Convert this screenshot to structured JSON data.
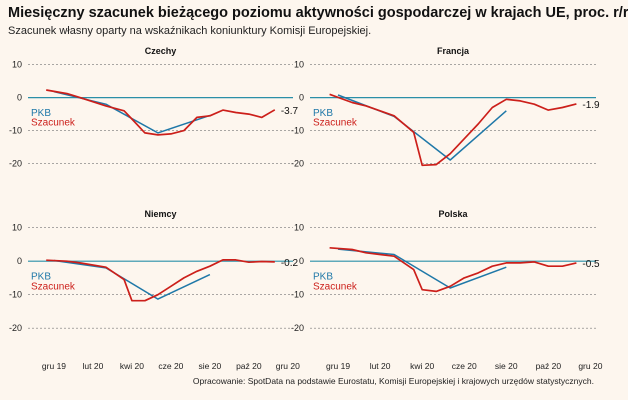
{
  "title": "Miesięczny szacunek bieżącego poziomu aktywności gospodarczej w krajach UE, proc. r/r",
  "subtitle": "Szacunek własny oparty na wskaźnikach koniunktury Komisji Europejskiej.",
  "source": "Opracowanie: SpotData na podstawie Eurostatu, Komisji Europejskiej i krajowych urzędów statystycznych.",
  "colors": {
    "pkb": "#1f78a8",
    "szacunek": "#cc1f1a",
    "zero_line": "#2a8fa8",
    "grid": "#777777",
    "background": "#fdf6ee"
  },
  "chart_data": [
    {
      "type": "line",
      "title": "Czechy",
      "x_tick_labels": [],
      "ylim": [
        -28,
        12
      ],
      "yticks": [
        10,
        0,
        -10,
        -20
      ],
      "series": [
        {
          "name": "PKB",
          "x": [
            0,
            2,
            4,
            6
          ],
          "y": [
            1.8,
            -2.0,
            -10.7,
            -5.4
          ]
        },
        {
          "name": "Szacunek",
          "x": [
            -0.3,
            0.5,
            1,
            2,
            2.7,
            3,
            3.5,
            4,
            4.5,
            5,
            5.5,
            6,
            6.5,
            7,
            7.5,
            8,
            8.5
          ],
          "y": [
            2.3,
            1.2,
            0.0,
            -2.5,
            -4.0,
            -6.5,
            -10.7,
            -11.3,
            -11.0,
            -10.0,
            -6.0,
            -5.5,
            -3.8,
            -4.5,
            -5.0,
            -6.0,
            -3.7
          ]
        }
      ],
      "last_value_label": "-3.7",
      "legend_labels": [
        "PKB",
        "Szacunek"
      ]
    },
    {
      "type": "line",
      "title": "Francja",
      "x_tick_labels": [],
      "ylim": [
        -28,
        12
      ],
      "yticks": [
        10,
        0,
        -10,
        -20
      ],
      "series": [
        {
          "name": "PKB",
          "x": [
            0,
            2,
            4,
            6
          ],
          "y": [
            0.8,
            -5.7,
            -18.9,
            -4.0
          ]
        },
        {
          "name": "Szacunek",
          "x": [
            -0.3,
            0.5,
            1,
            2,
            2.7,
            3,
            3.5,
            4,
            4.5,
            5,
            5.5,
            6,
            6.5,
            7,
            7.5,
            8,
            8.5
          ],
          "y": [
            1.0,
            -1.5,
            -2.5,
            -5.5,
            -10.5,
            -20.5,
            -20.3,
            -17.0,
            -12.5,
            -8.0,
            -3.0,
            -0.5,
            -1.0,
            -2.0,
            -3.8,
            -3.0,
            -1.9
          ]
        }
      ],
      "last_value_label": "-1.9",
      "legend_labels": [
        "PKB",
        "Szacunek"
      ]
    },
    {
      "type": "line",
      "title": "Niemcy",
      "x_tick_labels": [
        "gru 19",
        "lut 20",
        "kwi 20",
        "cze 20",
        "sie 20",
        "paź 20",
        "gru 20"
      ],
      "ylim": [
        -28,
        12
      ],
      "yticks": [
        10,
        0,
        -10,
        -20
      ],
      "series": [
        {
          "name": "PKB",
          "x": [
            0,
            2,
            4,
            6
          ],
          "y": [
            0.2,
            -2.0,
            -11.3,
            -4.0
          ]
        },
        {
          "name": "Szacunek",
          "x": [
            -0.3,
            0.5,
            1,
            2,
            2.7,
            3,
            3.5,
            4,
            4.5,
            5,
            5.5,
            6,
            6.5,
            7,
            7.5,
            8,
            8.5
          ],
          "y": [
            0.3,
            0.0,
            -0.5,
            -1.8,
            -5.5,
            -11.8,
            -11.8,
            -10.0,
            -7.5,
            -5.0,
            -3.0,
            -1.5,
            0.4,
            0.4,
            -0.3,
            -0.1,
            -0.2
          ]
        }
      ],
      "last_value_label": "-0.2",
      "legend_labels": [
        "PKB",
        "Szacunek"
      ]
    },
    {
      "type": "line",
      "title": "Polska",
      "x_tick_labels": [
        "gru 19",
        "lut 20",
        "kwi 20",
        "cze 20",
        "sie 20",
        "paź 20",
        "gru 20"
      ],
      "ylim": [
        -28,
        12
      ],
      "yticks": [
        10,
        0,
        -10,
        -20
      ],
      "series": [
        {
          "name": "PKB",
          "x": [
            0,
            2,
            4,
            6
          ],
          "y": [
            3.6,
            2.0,
            -8.0,
            -1.8
          ]
        },
        {
          "name": "Szacunek",
          "x": [
            -0.3,
            0.5,
            1,
            2,
            2.7,
            3,
            3.5,
            4,
            4.5,
            5,
            5.5,
            6,
            6.5,
            7,
            7.5,
            8,
            8.5
          ],
          "y": [
            4.0,
            3.5,
            2.5,
            1.5,
            -2.5,
            -8.5,
            -9.0,
            -7.5,
            -5.0,
            -3.5,
            -1.5,
            -0.5,
            -0.5,
            -0.2,
            -1.5,
            -1.5,
            -0.5
          ]
        }
      ],
      "last_value_label": "-0.5",
      "legend_labels": [
        "PKB",
        "Szacunek"
      ]
    }
  ]
}
